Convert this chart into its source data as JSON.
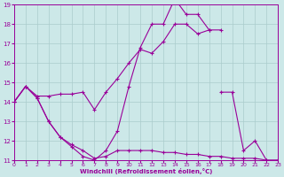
{
  "lines": [
    {
      "x": [
        0,
        1,
        2,
        3,
        4,
        5,
        6,
        7,
        8,
        9,
        10,
        11,
        12,
        13,
        14,
        15,
        16,
        17,
        18
      ],
      "y": [
        14.0,
        14.8,
        14.3,
        14.3,
        14.4,
        14.4,
        14.5,
        13.6,
        14.5,
        15.2,
        16.0,
        16.7,
        16.5,
        17.1,
        18.0,
        18.0,
        17.5,
        17.7,
        17.7
      ]
    },
    {
      "x": [
        0,
        1,
        2,
        3,
        4,
        5,
        6,
        7,
        8,
        9,
        10,
        11,
        12,
        13,
        14,
        15,
        16,
        17
      ],
      "y": [
        14.0,
        14.8,
        14.2,
        13.0,
        12.2,
        11.7,
        11.2,
        11.0,
        11.5,
        12.5,
        14.8,
        16.8,
        18.0,
        18.0,
        19.3,
        18.5,
        18.5,
        17.7
      ]
    },
    {
      "x": [
        0,
        1,
        2,
        3,
        4,
        5,
        6,
        7,
        8,
        9,
        10,
        11,
        12,
        13,
        14,
        15,
        16,
        17,
        18,
        19,
        20,
        21,
        22,
        23
      ],
      "y": [
        14.0,
        14.8,
        14.2,
        13.0,
        12.2,
        11.8,
        11.5,
        11.1,
        11.2,
        11.5,
        11.5,
        11.5,
        11.5,
        11.4,
        11.4,
        11.3,
        11.3,
        11.2,
        11.2,
        11.1,
        11.1,
        11.1,
        11.0,
        11.0
      ]
    },
    {
      "x": [
        18,
        19,
        20,
        21,
        22,
        23
      ],
      "y": [
        14.5,
        14.5,
        11.5,
        12.0,
        11.0,
        11.0
      ]
    }
  ],
  "color": "#990099",
  "bg_color": "#cce8e8",
  "grid_color": "#aacccc",
  "xlim": [
    0,
    23
  ],
  "ylim": [
    11,
    19
  ],
  "xlabel": "Windchill (Refroidissement éolien,°C)",
  "xticks": [
    0,
    1,
    2,
    3,
    4,
    5,
    6,
    7,
    8,
    9,
    10,
    11,
    12,
    13,
    14,
    15,
    16,
    17,
    18,
    19,
    20,
    21,
    22,
    23
  ],
  "yticks": [
    11,
    12,
    13,
    14,
    15,
    16,
    17,
    18,
    19
  ]
}
